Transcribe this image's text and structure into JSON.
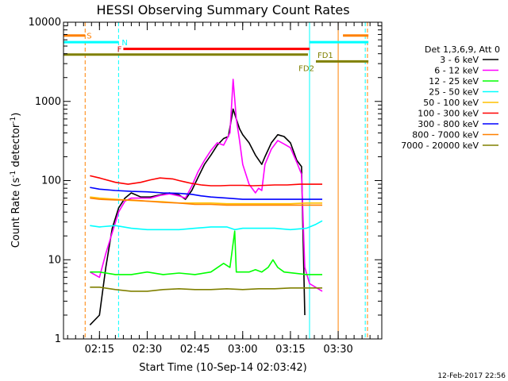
{
  "chart_data": {
    "type": "line",
    "title": "HESSI Observing Summary Count Rates",
    "xlabel": "Start Time (10-Sep-14 02:03:42)",
    "ylabel_main": "Count Rate (s",
    "ylabel_sup1": "-1",
    "ylabel_mid": " detector",
    "ylabel_sup2": "-1",
    "ylabel_end": ")",
    "footer": "12-Feb-2017 22:56",
    "x_start_minutes": 3.7,
    "x_end_minutes": 103.7,
    "x_ticks": [
      {
        "m": 15,
        "label": "02:15"
      },
      {
        "m": 30,
        "label": "02:30"
      },
      {
        "m": 45,
        "label": "02:45"
      },
      {
        "m": 60,
        "label": "03:00"
      },
      {
        "m": 75,
        "label": "03:15"
      },
      {
        "m": 90,
        "label": "03:30"
      }
    ],
    "x_minor_step": 2.5,
    "y_log": true,
    "ylim": [
      1,
      10000
    ],
    "y_ticks": [
      {
        "v": 1,
        "label": "1"
      },
      {
        "v": 10,
        "label": "10"
      },
      {
        "v": 100,
        "label": "100"
      },
      {
        "v": 1000,
        "label": "1000"
      },
      {
        "v": 10000,
        "label": "10000"
      }
    ],
    "legend_header": "Det 1,3,6,9, Att 0",
    "series": [
      {
        "name": "3 - 6 keV",
        "color": "#000000",
        "points": [
          [
            12,
            1.5
          ],
          [
            15,
            2
          ],
          [
            17,
            8
          ],
          [
            19,
            25
          ],
          [
            21,
            45
          ],
          [
            23,
            60
          ],
          [
            25,
            70
          ],
          [
            28,
            62
          ],
          [
            31,
            62
          ],
          [
            34,
            66
          ],
          [
            37,
            70
          ],
          [
            40,
            66
          ],
          [
            42,
            58
          ],
          [
            44,
            75
          ],
          [
            46,
            110
          ],
          [
            48,
            160
          ],
          [
            50,
            210
          ],
          [
            52,
            280
          ],
          [
            54,
            340
          ],
          [
            55.5,
            360
          ],
          [
            57,
            800
          ],
          [
            58,
            600
          ],
          [
            59,
            450
          ],
          [
            60,
            380
          ],
          [
            62,
            300
          ],
          [
            64,
            210
          ],
          [
            66,
            160
          ],
          [
            67,
            200
          ],
          [
            69,
            300
          ],
          [
            71,
            380
          ],
          [
            73,
            360
          ],
          [
            75,
            300
          ],
          [
            77,
            180
          ],
          [
            78.5,
            150
          ],
          [
            79.5,
            2
          ]
        ]
      },
      {
        "name": "6 - 12 keV",
        "color": "#ff00ff",
        "points": [
          [
            12,
            7
          ],
          [
            15,
            6
          ],
          [
            17,
            12
          ],
          [
            19,
            22
          ],
          [
            21,
            40
          ],
          [
            23,
            55
          ],
          [
            25,
            60
          ],
          [
            28,
            60
          ],
          [
            31,
            60
          ],
          [
            34,
            65
          ],
          [
            37,
            68
          ],
          [
            40,
            64
          ],
          [
            42,
            60
          ],
          [
            44,
            85
          ],
          [
            46,
            130
          ],
          [
            48,
            180
          ],
          [
            50,
            240
          ],
          [
            52,
            300
          ],
          [
            54,
            280
          ],
          [
            56,
            400
          ],
          [
            57,
            1900
          ],
          [
            58,
            600
          ],
          [
            59,
            320
          ],
          [
            60,
            160
          ],
          [
            62,
            90
          ],
          [
            64,
            70
          ],
          [
            65,
            80
          ],
          [
            66,
            75
          ],
          [
            67,
            160
          ],
          [
            69,
            250
          ],
          [
            71,
            320
          ],
          [
            73,
            290
          ],
          [
            75,
            260
          ],
          [
            77,
            170
          ],
          [
            78.5,
            120
          ],
          [
            79.5,
            8
          ],
          [
            81,
            5
          ],
          [
            85,
            4
          ]
        ]
      },
      {
        "name": "12 - 25 keV",
        "color": "#00ff00",
        "points": [
          [
            12,
            7
          ],
          [
            15,
            7
          ],
          [
            20,
            6.5
          ],
          [
            25,
            6.5
          ],
          [
            30,
            7
          ],
          [
            35,
            6.5
          ],
          [
            40,
            6.8
          ],
          [
            45,
            6.5
          ],
          [
            50,
            7
          ],
          [
            54,
            9
          ],
          [
            56,
            8
          ],
          [
            57.5,
            23
          ],
          [
            58,
            7
          ],
          [
            62,
            7
          ],
          [
            64,
            7.5
          ],
          [
            66,
            7
          ],
          [
            68,
            8
          ],
          [
            69.5,
            10
          ],
          [
            71,
            8
          ],
          [
            73,
            7
          ],
          [
            80,
            6.5
          ],
          [
            85,
            6.5
          ]
        ]
      },
      {
        "name": "25 - 50 keV",
        "color": "#00ffff",
        "points": [
          [
            12,
            27
          ],
          [
            15,
            26
          ],
          [
            20,
            27
          ],
          [
            25,
            25
          ],
          [
            30,
            24
          ],
          [
            35,
            24
          ],
          [
            40,
            24
          ],
          [
            45,
            25
          ],
          [
            50,
            26
          ],
          [
            55,
            26
          ],
          [
            57.5,
            24
          ],
          [
            60,
            25
          ],
          [
            65,
            25
          ],
          [
            70,
            25
          ],
          [
            75,
            24
          ],
          [
            80,
            25
          ],
          [
            83,
            28
          ],
          [
            85,
            31
          ]
        ]
      },
      {
        "name": "50 - 100 keV",
        "color": "#ffc000",
        "points": [
          [
            12,
            62
          ],
          [
            15,
            60
          ],
          [
            20,
            58
          ],
          [
            25,
            56
          ],
          [
            30,
            55
          ],
          [
            35,
            54
          ],
          [
            40,
            52
          ],
          [
            45,
            52
          ],
          [
            50,
            52
          ],
          [
            55,
            51
          ],
          [
            60,
            51
          ],
          [
            65,
            51
          ],
          [
            70,
            51
          ],
          [
            75,
            51
          ],
          [
            80,
            52
          ],
          [
            85,
            52
          ]
        ]
      },
      {
        "name": "100 - 300 keV",
        "color": "#ff0000",
        "points": [
          [
            12,
            115
          ],
          [
            15,
            108
          ],
          [
            20,
            95
          ],
          [
            24,
            90
          ],
          [
            28,
            95
          ],
          [
            31,
            102
          ],
          [
            34,
            108
          ],
          [
            38,
            105
          ],
          [
            40,
            100
          ],
          [
            42,
            96
          ],
          [
            44,
            92
          ],
          [
            47,
            88
          ],
          [
            50,
            86
          ],
          [
            53,
            86
          ],
          [
            56,
            87
          ],
          [
            60,
            87
          ],
          [
            63,
            86
          ],
          [
            67,
            87
          ],
          [
            70,
            88
          ],
          [
            74,
            88
          ],
          [
            78,
            90
          ],
          [
            81,
            90
          ],
          [
            85,
            90
          ]
        ]
      },
      {
        "name": "300 - 800 keV",
        "color": "#0000ff",
        "points": [
          [
            12,
            82
          ],
          [
            15,
            78
          ],
          [
            20,
            75
          ],
          [
            25,
            73
          ],
          [
            30,
            72
          ],
          [
            35,
            70
          ],
          [
            40,
            69
          ],
          [
            44,
            67
          ],
          [
            47,
            64
          ],
          [
            50,
            62
          ],
          [
            55,
            60
          ],
          [
            60,
            58
          ],
          [
            65,
            58
          ],
          [
            70,
            58
          ],
          [
            75,
            58
          ],
          [
            80,
            58
          ],
          [
            85,
            58
          ]
        ]
      },
      {
        "name": "800 - 7000 keV",
        "color": "#ff8000",
        "points": [
          [
            12,
            60
          ],
          [
            15,
            58
          ],
          [
            20,
            57
          ],
          [
            25,
            57
          ],
          [
            30,
            55
          ],
          [
            35,
            53
          ],
          [
            40,
            52
          ],
          [
            45,
            50
          ],
          [
            50,
            50
          ],
          [
            55,
            49
          ],
          [
            60,
            49
          ],
          [
            65,
            49
          ],
          [
            70,
            49
          ],
          [
            75,
            49
          ],
          [
            80,
            49
          ],
          [
            85,
            49
          ]
        ]
      },
      {
        "name": "7000 - 20000 keV",
        "color": "#808000",
        "points": [
          [
            12,
            4.5
          ],
          [
            15,
            4.5
          ],
          [
            20,
            4.2
          ],
          [
            25,
            4
          ],
          [
            30,
            4
          ],
          [
            35,
            4.2
          ],
          [
            40,
            4.3
          ],
          [
            45,
            4.2
          ],
          [
            50,
            4.2
          ],
          [
            55,
            4.3
          ],
          [
            60,
            4.2
          ],
          [
            65,
            4.3
          ],
          [
            70,
            4.3
          ],
          [
            75,
            4.4
          ],
          [
            80,
            4.4
          ],
          [
            85,
            4.4
          ]
        ]
      }
    ],
    "flags": [
      {
        "label": "S",
        "color": "#ff8000",
        "m_from": 3.7,
        "m_to": 10.5,
        "y": 6800
      },
      {
        "label": "N",
        "color": "#00ffff",
        "m_from": 3.7,
        "m_to": 21,
        "y": 5600
      },
      {
        "label": "F",
        "color": "#ff0000",
        "m_from": 22.5,
        "m_to": 81,
        "y": 4600
      },
      {
        "label": "FD1",
        "color": "#808000",
        "m_from": 3.7,
        "m_to": 80.5,
        "y": 3900
      },
      {
        "label": "FD2",
        "color": "#808000",
        "m_from": 83,
        "m_to": 99.5,
        "y": 3200
      },
      {
        "label": "",
        "color": "#00ffff",
        "m_from": 81,
        "m_to": 99.5,
        "y": 5600
      },
      {
        "label": "",
        "color": "#ff8000",
        "m_from": 91.5,
        "m_to": 99.5,
        "y": 6800
      }
    ],
    "vlines": [
      {
        "m": 3.7,
        "color": "#00ffff",
        "dashed": false
      },
      {
        "m": 10.5,
        "color": "#ff8000",
        "dashed": true
      },
      {
        "m": 21,
        "color": "#00ffff",
        "dashed": true
      },
      {
        "m": 81,
        "color": "#00ffff",
        "dashed": false
      },
      {
        "m": 90,
        "color": "#ff8000",
        "dashed": false
      },
      {
        "m": 98.5,
        "color": "#00ffff",
        "dashed": true
      },
      {
        "m": 99.2,
        "color": "#ff8000",
        "dashed": true
      }
    ]
  }
}
